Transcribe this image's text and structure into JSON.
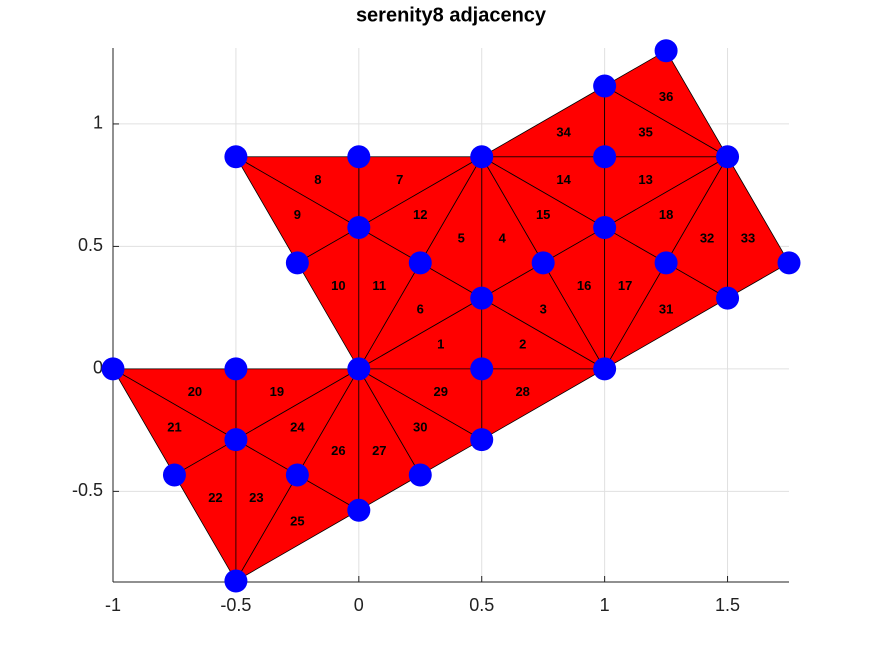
{
  "chart_data": {
    "type": "mesh",
    "title": "serenity8 adjacency",
    "xlim": [
      -1,
      1.75
    ],
    "ylim": [
      -0.87,
      1.31
    ],
    "xticks": [
      -1,
      -0.5,
      0,
      0.5,
      1,
      1.5
    ],
    "yticks": [
      -0.5,
      0,
      0.5,
      1
    ],
    "grid": true,
    "face_color": "#ff0000",
    "edge_color": "#000000",
    "node_color": "#0000ff",
    "nodes": {
      "x": [
        -1,
        -0.5,
        0,
        0.5,
        1,
        -0.5,
        -0.75,
        -0.25,
        -0.5,
        0,
        0.25,
        0.5,
        0.5,
        0.25,
        0.75,
        0,
        -0.25,
        -0.5,
        0,
        0.5,
        1,
        1,
        1.25,
        1.5,
        1.5,
        1.75,
        1,
        1.25
      ],
      "y": [
        0,
        0,
        0,
        0,
        0,
        -0.289,
        -0.433,
        -0.433,
        -0.866,
        -0.577,
        -0.433,
        -0.289,
        0.289,
        0.433,
        0.433,
        0.577,
        0.433,
        0.866,
        0.866,
        0.866,
        0.577,
        0.866,
        0.433,
        0.866,
        0.289,
        0.433,
        1.155,
        1.299
      ]
    },
    "triangles": [
      {
        "label": 1,
        "x": [
          0,
          0.5,
          0.5
        ],
        "y": [
          0,
          0.289,
          0
        ]
      },
      {
        "label": 2,
        "x": [
          0.5,
          0.5,
          1
        ],
        "y": [
          0,
          0.289,
          0
        ]
      },
      {
        "label": 3,
        "x": [
          0.5,
          0.75,
          1
        ],
        "y": [
          0.289,
          0.433,
          0
        ]
      },
      {
        "label": 4,
        "x": [
          0.5,
          0.5,
          0.75
        ],
        "y": [
          0.289,
          0.866,
          0.433
        ]
      },
      {
        "label": 5,
        "x": [
          0.5,
          0.25,
          0.5
        ],
        "y": [
          0.289,
          0.433,
          0.866
        ]
      },
      {
        "label": 6,
        "x": [
          0,
          0.25,
          0.5
        ],
        "y": [
          0,
          0.433,
          0.289
        ]
      },
      {
        "label": 7,
        "x": [
          0,
          0.5,
          0
        ],
        "y": [
          0.866,
          0.866,
          0.577
        ]
      },
      {
        "label": 8,
        "x": [
          -0.5,
          0,
          0
        ],
        "y": [
          0.866,
          0.866,
          0.577
        ]
      },
      {
        "label": 9,
        "x": [
          -0.5,
          0,
          -0.25
        ],
        "y": [
          0.866,
          0.577,
          0.433
        ]
      },
      {
        "label": 10,
        "x": [
          -0.25,
          0,
          0
        ],
        "y": [
          0.433,
          0.577,
          0
        ]
      },
      {
        "label": 11,
        "x": [
          0,
          0.25,
          0
        ],
        "y": [
          0.577,
          0.433,
          0
        ]
      },
      {
        "label": 12,
        "x": [
          0,
          0.5,
          0.25
        ],
        "y": [
          0.577,
          0.866,
          0.433
        ]
      },
      {
        "label": 13,
        "x": [
          1,
          1.5,
          1
        ],
        "y": [
          0.866,
          0.866,
          0.577
        ]
      },
      {
        "label": 14,
        "x": [
          0.5,
          1,
          1
        ],
        "y": [
          0.866,
          0.866,
          0.577
        ]
      },
      {
        "label": 15,
        "x": [
          0.5,
          1,
          0.75
        ],
        "y": [
          0.866,
          0.577,
          0.433
        ]
      },
      {
        "label": 16,
        "x": [
          0.75,
          1,
          1
        ],
        "y": [
          0.433,
          0.577,
          0
        ]
      },
      {
        "label": 17,
        "x": [
          1,
          1.25,
          1
        ],
        "y": [
          0.577,
          0.433,
          0
        ]
      },
      {
        "label": 18,
        "x": [
          1,
          1.5,
          1.25
        ],
        "y": [
          0.577,
          0.866,
          0.433
        ]
      },
      {
        "label": 19,
        "x": [
          -0.5,
          0,
          -0.5
        ],
        "y": [
          0,
          0,
          -0.289
        ]
      },
      {
        "label": 20,
        "x": [
          -1,
          -0.5,
          -0.5
        ],
        "y": [
          0,
          0,
          -0.289
        ]
      },
      {
        "label": 21,
        "x": [
          -1,
          -0.5,
          -0.75
        ],
        "y": [
          0,
          -0.289,
          -0.433
        ]
      },
      {
        "label": 22,
        "x": [
          -0.75,
          -0.5,
          -0.5
        ],
        "y": [
          -0.433,
          -0.289,
          -0.866
        ]
      },
      {
        "label": 23,
        "x": [
          -0.5,
          -0.25,
          -0.5
        ],
        "y": [
          -0.289,
          -0.433,
          -0.866
        ]
      },
      {
        "label": 24,
        "x": [
          -0.5,
          0,
          -0.25
        ],
        "y": [
          -0.289,
          0,
          -0.433
        ]
      },
      {
        "label": 25,
        "x": [
          -0.25,
          0,
          -0.5
        ],
        "y": [
          -0.433,
          -0.577,
          -0.866
        ]
      },
      {
        "label": 26,
        "x": [
          -0.25,
          0,
          0
        ],
        "y": [
          -0.433,
          0,
          -0.577
        ]
      },
      {
        "label": 27,
        "x": [
          0,
          0.25,
          0
        ],
        "y": [
          0,
          -0.433,
          -0.577
        ]
      },
      {
        "label": 28,
        "x": [
          0.5,
          1,
          0.5
        ],
        "y": [
          0,
          0,
          -0.289
        ]
      },
      {
        "label": 29,
        "x": [
          0,
          0.5,
          0.5
        ],
        "y": [
          0,
          0,
          -0.289
        ]
      },
      {
        "label": 30,
        "x": [
          0,
          0.5,
          0.25
        ],
        "y": [
          0,
          -0.289,
          -0.433
        ]
      },
      {
        "label": 31,
        "x": [
          1,
          1.25,
          1.5
        ],
        "y": [
          0,
          0.433,
          0.289
        ]
      },
      {
        "label": 32,
        "x": [
          1.25,
          1.5,
          1.5
        ],
        "y": [
          0.433,
          0.866,
          0.289
        ]
      },
      {
        "label": 33,
        "x": [
          1.5,
          1.75,
          1.5
        ],
        "y": [
          0.866,
          0.433,
          0.289
        ]
      },
      {
        "label": 34,
        "x": [
          0.5,
          1,
          1
        ],
        "y": [
          0.866,
          1.155,
          0.866
        ]
      },
      {
        "label": 35,
        "x": [
          1,
          1.5,
          1
        ],
        "y": [
          1.155,
          0.866,
          0.866
        ]
      },
      {
        "label": 36,
        "x": [
          1,
          1.25,
          1.5
        ],
        "y": [
          1.155,
          1.299,
          0.866
        ]
      }
    ]
  }
}
